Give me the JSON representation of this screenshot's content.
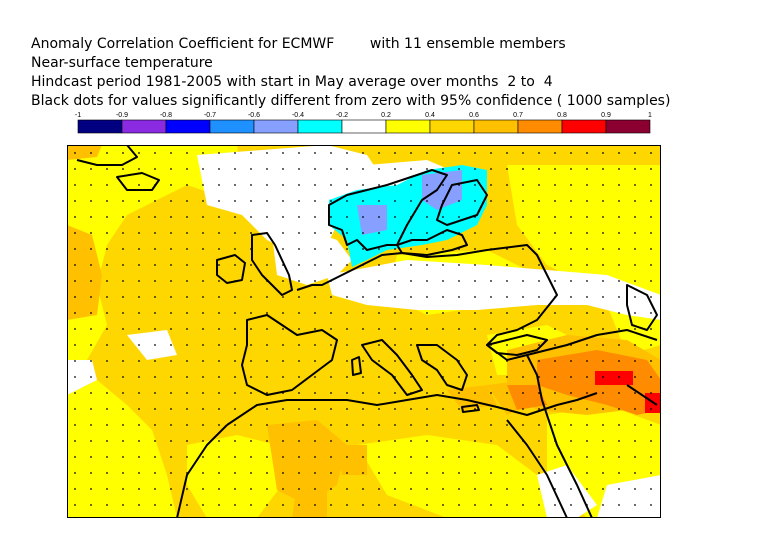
{
  "title": {
    "line1": "Anomaly Correlation Coefficient for ECMWF        with 11 ensemble members",
    "line2": "Near-surface temperature",
    "line3": "Hindcast period 1981-2005 with start in May average over months  2 to  4",
    "line4": "Black dots for values significantly different from zero with 95% confidence ( 1000 samples)"
  },
  "colorbar": {
    "tick_labels": [
      "-1",
      "-0.9",
      "-0.8",
      "-0.7",
      "-0.6",
      "-0.4",
      "-0.2",
      "0.2",
      "0.4",
      "0.6",
      "0.7",
      "0.8",
      "0.9",
      "1"
    ],
    "colors": [
      "#000080",
      "#8a2be2",
      "#0000ff",
      "#1e90ff",
      "#87a0ff",
      "#00ffff",
      "#ffffff",
      "#ffff00",
      "#ffd700",
      "#ffc000",
      "#ff8c00",
      "#ff0000",
      "#8b0030"
    ]
  },
  "map": {
    "region": "Europe / North Africa / Middle East",
    "variable": "Near-surface temperature anomaly correlation",
    "ocean_color": "#ffffff",
    "dominant_land_color": "#ffd700",
    "coastline_color": "#000000"
  }
}
